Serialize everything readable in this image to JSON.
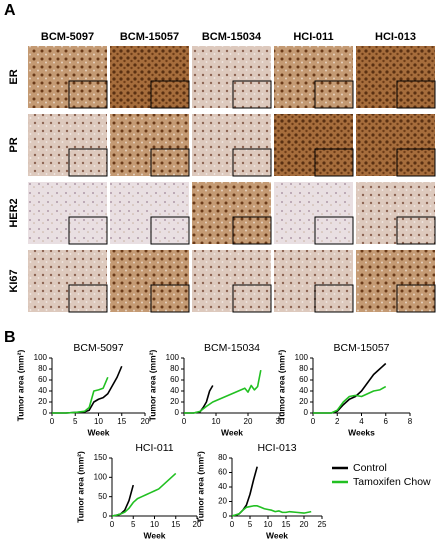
{
  "panel_a": {
    "label": "A",
    "columns": [
      "BCM-5097",
      "BCM-15057",
      "BCM-15034",
      "HCI-011",
      "HCI-013"
    ],
    "rows": [
      "ER",
      "PR",
      "HER2",
      "KI67"
    ]
  },
  "panel_b": {
    "label": "B"
  },
  "chart_data": [
    {
      "type": "line",
      "title": "BCM-5097",
      "ylabel": "Tumor area (mm²)",
      "xlabel": "Week",
      "xlim": [
        0,
        20
      ],
      "xticks": [
        0,
        5,
        10,
        15,
        20
      ],
      "ylim": [
        0,
        100
      ],
      "yticks": [
        0,
        20,
        40,
        60,
        80,
        100
      ],
      "series": [
        {
          "color": "#000000",
          "x": [
            0,
            3,
            5,
            7,
            8,
            9,
            10,
            11,
            12,
            13,
            14,
            15
          ],
          "values": [
            0,
            0,
            1,
            2,
            5,
            20,
            25,
            28,
            35,
            50,
            65,
            85
          ]
        },
        {
          "color": "#22c022",
          "x": [
            0,
            3,
            5,
            7,
            8,
            9,
            10,
            11,
            12
          ],
          "values": [
            0,
            0,
            1,
            3,
            10,
            40,
            42,
            45,
            65
          ]
        }
      ]
    },
    {
      "type": "line",
      "title": "BCM-15034",
      "ylabel": "Tumor area (mm²)",
      "xlabel": "Week",
      "xlim": [
        0,
        30
      ],
      "xticks": [
        0,
        10,
        20,
        30
      ],
      "ylim": [
        0,
        100
      ],
      "yticks": [
        0,
        20,
        40,
        60,
        80,
        100
      ],
      "series": [
        {
          "color": "#000000",
          "x": [
            0,
            3,
            5,
            6,
            7,
            8,
            9
          ],
          "values": [
            0,
            0,
            2,
            10,
            20,
            40,
            50
          ]
        },
        {
          "color": "#22c022",
          "x": [
            0,
            3,
            5,
            7,
            9,
            11,
            13,
            15,
            17,
            19,
            20,
            21,
            22,
            23,
            24
          ],
          "values": [
            0,
            0,
            3,
            12,
            20,
            25,
            30,
            35,
            40,
            45,
            38,
            50,
            42,
            48,
            78
          ]
        }
      ]
    },
    {
      "type": "line",
      "title": "BCM-15057",
      "ylabel": "Tumor area (mm²)",
      "xlabel": "Weeks",
      "xlim": [
        0,
        8
      ],
      "xticks": [
        0,
        2,
        4,
        6,
        8
      ],
      "ylim": [
        0,
        100
      ],
      "yticks": [
        0,
        20,
        40,
        60,
        80,
        100
      ],
      "series": [
        {
          "color": "#000000",
          "x": [
            0,
            1,
            1.5,
            2,
            2.5,
            3,
            3.5,
            4,
            4.5,
            5,
            5.5,
            6
          ],
          "values": [
            0,
            0,
            0,
            3,
            15,
            25,
            30,
            40,
            55,
            70,
            80,
            90
          ]
        },
        {
          "color": "#22c022",
          "x": [
            0,
            1,
            1.5,
            2,
            2.5,
            3,
            3.5,
            4,
            4.5,
            5,
            5.5,
            6
          ],
          "values": [
            0,
            0,
            0,
            5,
            20,
            30,
            32,
            30,
            35,
            40,
            42,
            48
          ]
        }
      ]
    },
    {
      "type": "line",
      "title": "HCI-011",
      "ylabel": "Tumor area (mm²)",
      "xlabel": "Week",
      "xlim": [
        0,
        20
      ],
      "xticks": [
        0,
        5,
        10,
        15,
        20
      ],
      "ylim": [
        0,
        150
      ],
      "yticks": [
        0,
        50,
        100,
        150
      ],
      "series": [
        {
          "color": "#000000",
          "x": [
            0,
            1,
            2,
            3,
            4,
            5
          ],
          "values": [
            0,
            2,
            5,
            15,
            40,
            80
          ]
        },
        {
          "color": "#22c022",
          "x": [
            0,
            1,
            2,
            3,
            4,
            5,
            6,
            7,
            8,
            9,
            10,
            11,
            12,
            13,
            14,
            15
          ],
          "values": [
            0,
            2,
            5,
            10,
            20,
            35,
            45,
            50,
            55,
            60,
            65,
            70,
            80,
            90,
            100,
            110
          ]
        }
      ]
    },
    {
      "type": "line",
      "title": "HCI-013",
      "ylabel": "Tumor area (mm²)",
      "xlabel": "Week",
      "xlim": [
        0,
        25
      ],
      "xticks": [
        0,
        5,
        10,
        15,
        20,
        25
      ],
      "ylim": [
        0,
        80
      ],
      "yticks": [
        0,
        20,
        40,
        60,
        80
      ],
      "legend": "right",
      "series": [
        {
          "name": "Control",
          "color": "#000000",
          "x": [
            0,
            1,
            2,
            3,
            4,
            5,
            6,
            7
          ],
          "values": [
            0,
            1,
            3,
            8,
            15,
            30,
            50,
            68
          ]
        },
        {
          "name": "Tamoxifen Chow",
          "color": "#22c022",
          "x": [
            0,
            2,
            3,
            4,
            5,
            6,
            7,
            8,
            9,
            10,
            11,
            12,
            13,
            14,
            15,
            16,
            18,
            20,
            22
          ],
          "values": [
            0,
            3,
            8,
            12,
            13,
            14,
            14,
            12,
            10,
            9,
            8,
            6,
            7,
            5,
            5,
            6,
            5,
            4,
            6
          ]
        }
      ]
    }
  ]
}
